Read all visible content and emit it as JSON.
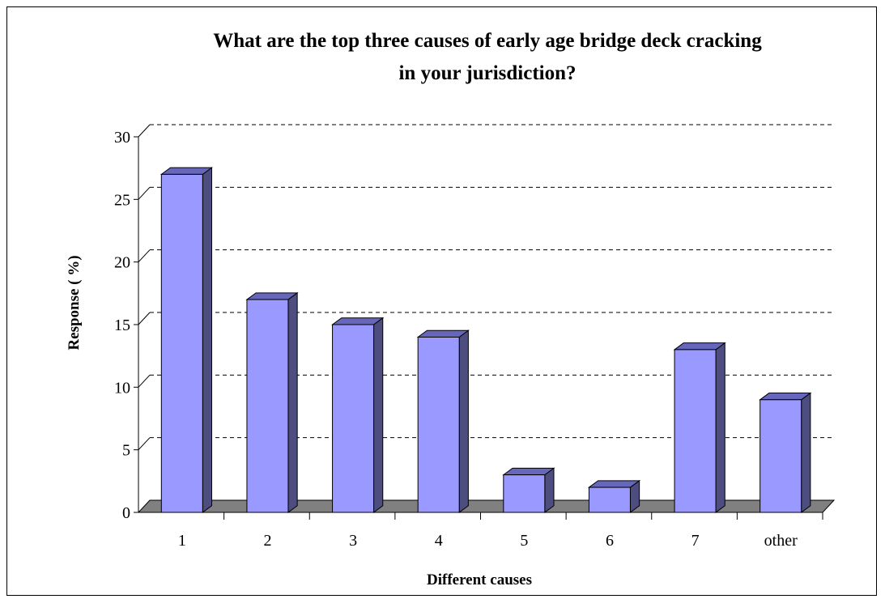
{
  "chart_data": {
    "type": "bar",
    "title_line1": "What are the top three causes of early age bridge deck cracking",
    "title_line2": "in your jurisdiction?",
    "xlabel": "Different causes",
    "ylabel": "Response ( %)",
    "categories": [
      "1",
      "2",
      "3",
      "4",
      "5",
      "6",
      "7",
      "other"
    ],
    "values": [
      27,
      17,
      15,
      14,
      3,
      2,
      13,
      9
    ],
    "ylim": [
      0,
      30
    ],
    "yticks": [
      0,
      5,
      10,
      15,
      20,
      25,
      30
    ],
    "grid": true,
    "colors": {
      "bar_front": "#9999ff",
      "bar_side": "#4d4d80",
      "bar_top": "#6666bb",
      "floor": "#808080"
    }
  }
}
